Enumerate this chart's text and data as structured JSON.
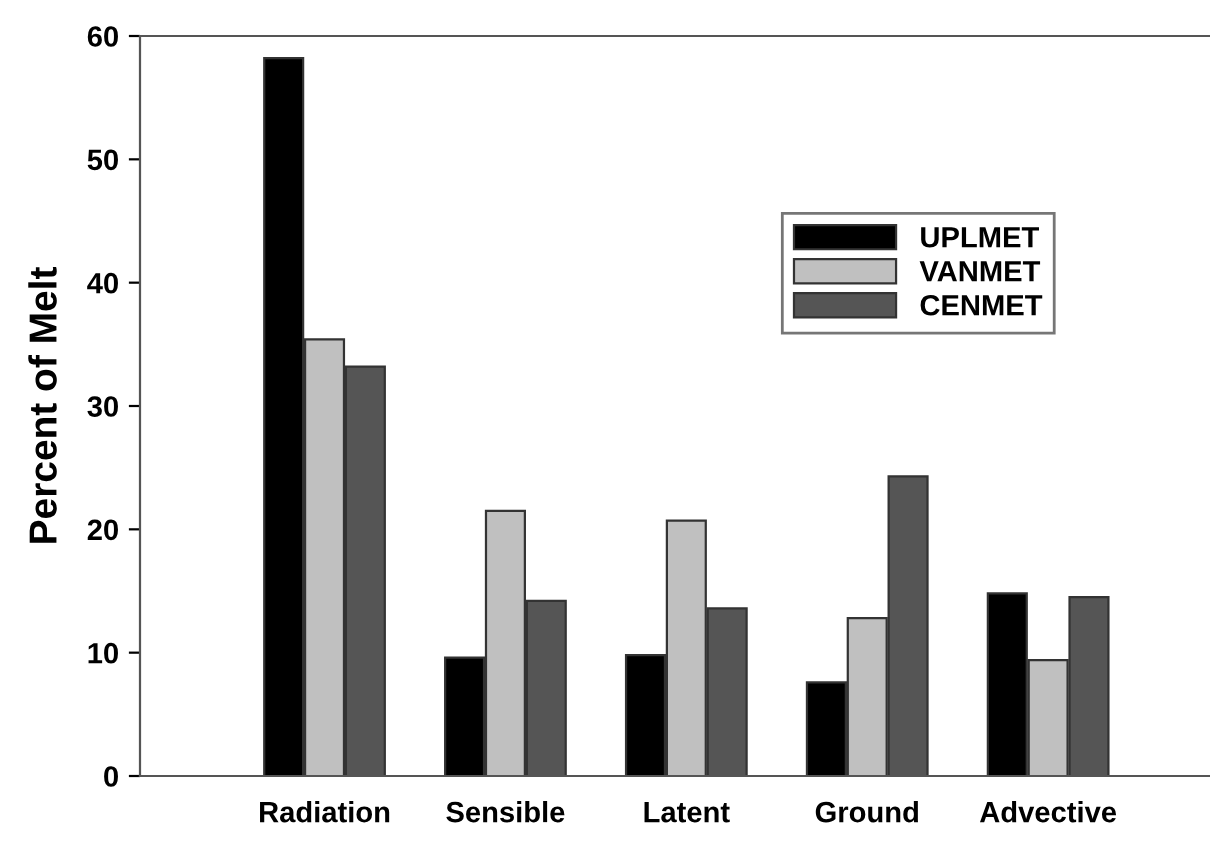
{
  "chart_data": {
    "type": "bar",
    "ylabel": "Percent of Melt",
    "categories": [
      "Radiation",
      "Sensible",
      "Latent",
      "Ground",
      "Advective"
    ],
    "series": [
      {
        "name": "UPLMET",
        "color": "#000000",
        "values": [
          58.2,
          9.6,
          9.8,
          7.6,
          14.8
        ]
      },
      {
        "name": "VANMET",
        "color": "#c0c0c0",
        "values": [
          35.4,
          21.5,
          20.7,
          12.8,
          9.4
        ]
      },
      {
        "name": "CENMET",
        "color": "#555555",
        "values": [
          33.2,
          14.2,
          13.6,
          24.3,
          14.5
        ]
      }
    ],
    "ylim": [
      0,
      60
    ],
    "yticks": [
      0,
      10,
      20,
      30,
      40,
      50,
      60
    ],
    "grid": false,
    "legend": "top right"
  }
}
